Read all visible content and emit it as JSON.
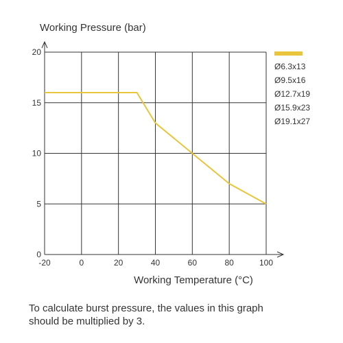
{
  "chart_data": {
    "type": "line",
    "ylabel": "Working Pressure (bar)",
    "xlabel": "Working Temperature (°C)",
    "xlim": [
      -20,
      100
    ],
    "ylim": [
      0,
      20
    ],
    "x_ticks": [
      "-20",
      "0",
      "20",
      "40",
      "60",
      "80",
      "100"
    ],
    "y_ticks": [
      "0",
      "5",
      "10",
      "15",
      "20"
    ],
    "x_tick_values": [
      -20,
      0,
      20,
      40,
      60,
      80,
      100
    ],
    "y_tick_values": [
      0,
      5,
      10,
      15,
      20
    ],
    "grid": true,
    "legend_position": "right",
    "legend": [
      "Ø6.3x13",
      "Ø9.5x16",
      "Ø12.7x19",
      "Ø15.9x23",
      "Ø19.1x27"
    ],
    "series": [
      {
        "color": "#e8c53a",
        "points": [
          [
            -20,
            16
          ],
          [
            30,
            16
          ],
          [
            40,
            13
          ],
          [
            60,
            10
          ],
          [
            80,
            7
          ],
          [
            100,
            5
          ]
        ]
      }
    ]
  },
  "note": {
    "line1": "To calculate burst pressure, the values in this graph",
    "line2": "should be multiplied by 3."
  }
}
